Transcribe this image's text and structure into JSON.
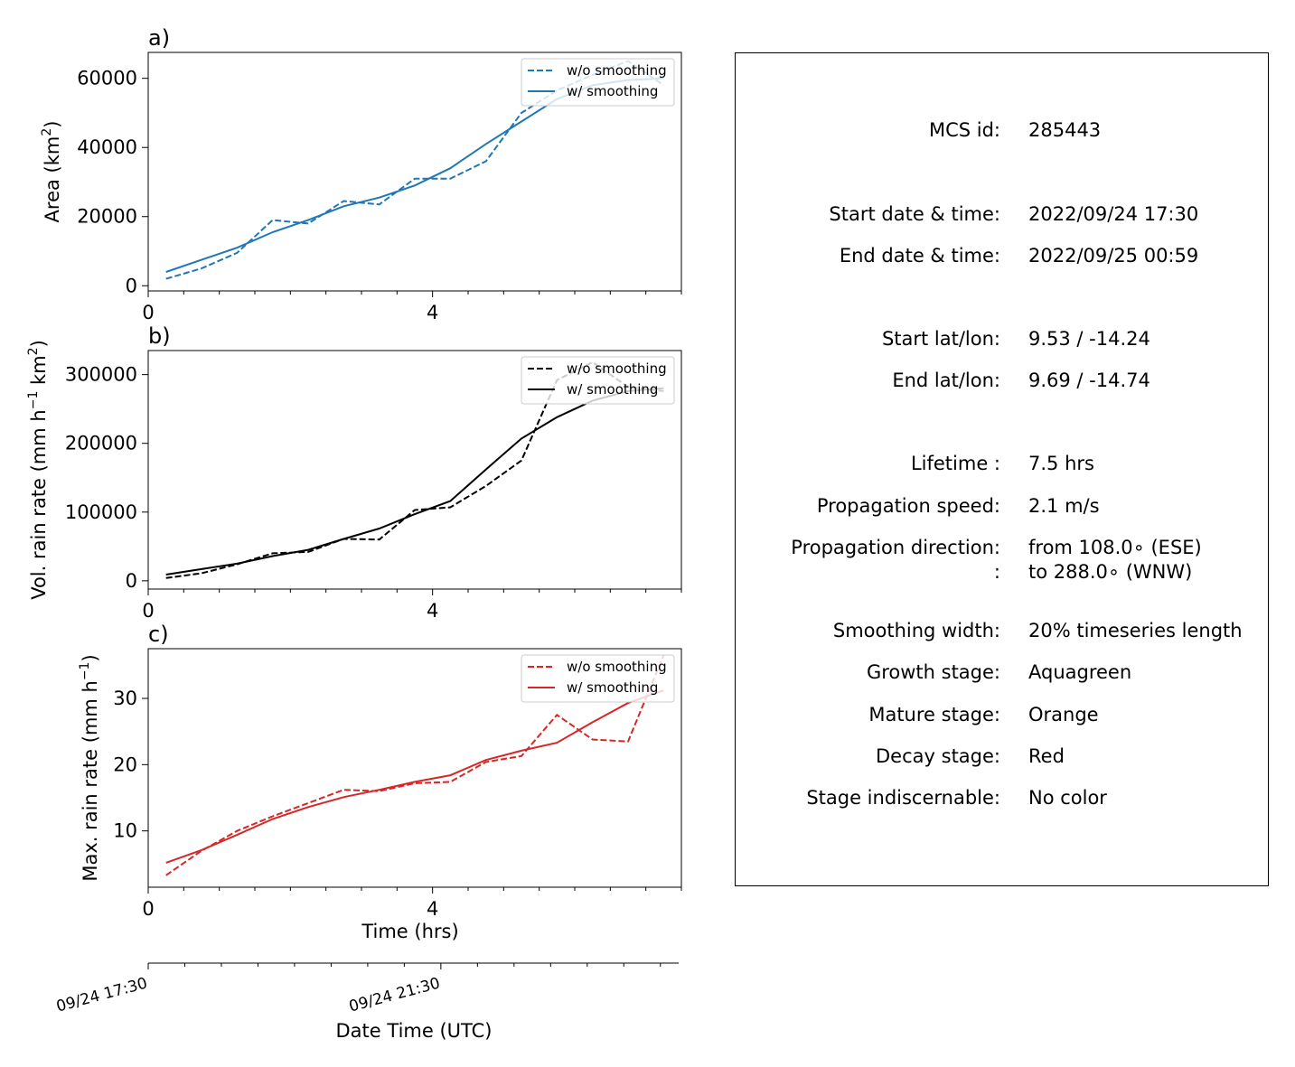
{
  "chart_data": [
    {
      "type": "line",
      "panel_label": "a)",
      "ylabel": "Area  (km$^2$)",
      "ylabel_display": [
        "Area  (km",
        "2",
        ")"
      ],
      "xlabel": "",
      "xlim": [
        0,
        7.5
      ],
      "ylim": [
        -1500,
        67500
      ],
      "xticks": [
        0,
        4
      ],
      "xticks_minor": [
        0.5,
        1,
        1.5,
        2,
        2.5,
        3,
        3.5,
        4.5,
        5,
        5.5,
        6,
        6.5,
        7,
        7.5
      ],
      "yticks": [
        0,
        20000,
        40000,
        60000
      ],
      "legend": "upper-right",
      "color": "#1f77b4",
      "series": [
        {
          "name": "w/o smoothing",
          "style": "dashed",
          "x": [
            0.25,
            0.75,
            1.25,
            1.75,
            2.25,
            2.75,
            3.25,
            3.75,
            4.25,
            4.75,
            5.25,
            5.75,
            6.25,
            6.75,
            7.25
          ],
          "y": [
            2000,
            5000,
            9500,
            19000,
            18000,
            24500,
            23500,
            31000,
            31000,
            36000,
            50000,
            56500,
            61000,
            65000,
            58000
          ]
        },
        {
          "name": "w/ smoothing",
          "style": "solid",
          "x": [
            0.25,
            0.75,
            1.25,
            1.75,
            2.25,
            2.75,
            3.25,
            3.75,
            4.25,
            4.75,
            5.25,
            5.75,
            6.25,
            6.75,
            7.25
          ],
          "y": [
            4000,
            7500,
            11000,
            15500,
            19000,
            23000,
            25500,
            29000,
            34000,
            41000,
            47500,
            54000,
            58000,
            59500,
            60000
          ]
        }
      ]
    },
    {
      "type": "line",
      "panel_label": "b)",
      "ylabel": "Vol. rain rate (mm h$^{-1}$ km$^2$)",
      "ylabel_display": [
        "Vol. rain rate (mm h",
        "−1",
        " km",
        "2",
        ")"
      ],
      "xlabel": "",
      "xlim": [
        0,
        7.5
      ],
      "ylim": [
        -12000,
        335000
      ],
      "xticks": [
        0,
        4
      ],
      "xticks_minor": [
        0.5,
        1,
        1.5,
        2,
        2.5,
        3,
        3.5,
        4.5,
        5,
        5.5,
        6,
        6.5,
        7,
        7.5
      ],
      "yticks": [
        0,
        100000,
        200000,
        300000
      ],
      "legend": "upper-right",
      "color": "#000000",
      "series": [
        {
          "name": "w/o smoothing",
          "style": "dashed",
          "x": [
            0.25,
            0.75,
            1.25,
            1.75,
            2.25,
            2.75,
            3.25,
            3.75,
            4.25,
            4.75,
            5.25,
            5.75,
            6.25,
            6.75,
            7.25
          ],
          "y": [
            4000,
            11000,
            24000,
            40000,
            42000,
            61000,
            60000,
            103000,
            107000,
            138000,
            175000,
            292000,
            318000,
            282000,
            276000
          ]
        },
        {
          "name": "w/ smoothing",
          "style": "solid",
          "x": [
            0.25,
            0.75,
            1.25,
            1.75,
            2.25,
            2.75,
            3.25,
            3.75,
            4.25,
            4.75,
            5.25,
            5.75,
            6.25,
            6.75,
            7.25
          ],
          "y": [
            9000,
            17000,
            25000,
            36000,
            45000,
            61000,
            76000,
            97000,
            116000,
            162000,
            207000,
            238000,
            262000,
            276000,
            280000
          ]
        }
      ]
    },
    {
      "type": "line",
      "panel_label": "c)",
      "ylabel": "Max. rain rate  (mm h$^{-1}$)",
      "ylabel_display": [
        "Max. rain rate  (mm h",
        "−1",
        ")"
      ],
      "xlabel": "Time (hrs)",
      "xlim": [
        0,
        7.5
      ],
      "ylim": [
        1.5,
        37.5
      ],
      "xticks": [
        0,
        4
      ],
      "xticks_minor": [
        0.5,
        1,
        1.5,
        2,
        2.5,
        3,
        3.5,
        4.5,
        5,
        5.5,
        6,
        6.5,
        7,
        7.5
      ],
      "yticks": [
        10,
        20,
        30
      ],
      "legend": "upper-right",
      "color": "#d62728",
      "series": [
        {
          "name": "w/o smoothing",
          "style": "dashed",
          "x": [
            0.25,
            0.75,
            1.25,
            1.75,
            2.25,
            2.75,
            3.25,
            3.75,
            4.25,
            4.75,
            5.25,
            5.75,
            6.25,
            6.75,
            7.25
          ],
          "y": [
            3.3,
            7,
            10,
            12.2,
            14.2,
            16.2,
            16,
            17.2,
            17.4,
            20.4,
            21.3,
            27.5,
            23.8,
            23.5,
            36.5
          ]
        },
        {
          "name": "w/ smoothing",
          "style": "solid",
          "x": [
            0.25,
            0.75,
            1.25,
            1.75,
            2.25,
            2.75,
            3.25,
            3.75,
            4.25,
            4.75,
            5.25,
            5.75,
            6.25,
            6.75,
            7.25
          ],
          "y": [
            5.2,
            7.1,
            9.4,
            11.8,
            13.6,
            15.1,
            16.2,
            17.4,
            18.4,
            20.7,
            22.1,
            23.3,
            26.4,
            29.3,
            31.2
          ]
        }
      ]
    },
    {
      "type": "axis",
      "xlabel": "Date Time (UTC)",
      "xticks": [
        0,
        4
      ],
      "xticks_minor": [
        0.5,
        1,
        1.5,
        2,
        2.5,
        3,
        3.5,
        4.5,
        5,
        5.5,
        6,
        6.5,
        7
      ],
      "xtick_labels": [
        "09/24 17:30",
        "09/24 21:30"
      ],
      "xlim": [
        0,
        7.25
      ]
    }
  ],
  "info": [
    {
      "key": "MCS id:",
      "value": "285443"
    },
    {
      "key": "Start date & time:",
      "value": "2022/09/24 17:30"
    },
    {
      "key": "End date & time:",
      "value": "2022/09/25 00:59"
    },
    {
      "key": "Start lat/lon:",
      "value": "9.53 / -14.24"
    },
    {
      "key": "End lat/lon:",
      "value": "9.69 / -14.74"
    },
    {
      "key": "Lifetime :",
      "value": "7.5 hrs"
    },
    {
      "key": "Propagation speed:",
      "value": "2.1 m/s"
    },
    {
      "key": "Propagation direction:",
      "value": "from 108.0∘ (ESE)"
    },
    {
      "key": ":",
      "value": "to   288.0∘ (WNW)"
    },
    {
      "key": "Smoothing width:",
      "value": "20% timeseries length"
    },
    {
      "key": "Growth stage:",
      "value": "Aquagreen"
    },
    {
      "key": "Mature stage:",
      "value": "Orange"
    },
    {
      "key": "Decay stage:",
      "value": "Red"
    },
    {
      "key": "Stage indiscernable:",
      "value": "No color"
    }
  ]
}
